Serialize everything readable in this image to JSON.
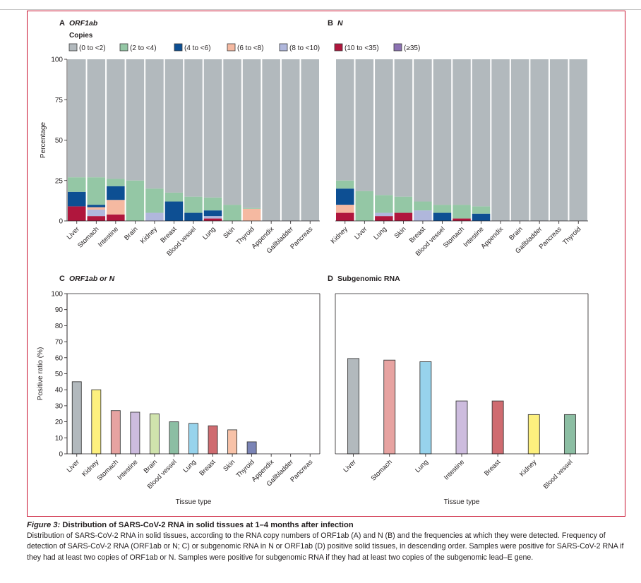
{
  "colors": {
    "frame": "#c8102e",
    "copies": [
      "#b2b9bd",
      "#94c7a5",
      "#0d4f93",
      "#f5b9a1",
      "#b0b7dc",
      "#b0163d",
      "#8c72b3"
    ]
  },
  "legend": {
    "title": "Copies",
    "items": [
      "(0 to <2)",
      "(2 to <4)",
      "(4 to <6)",
      "(6 to <8)",
      "(8 to <10)",
      "(10 to <35)",
      "(≥35)"
    ]
  },
  "axes": {
    "percentage_label": "Percentage",
    "positive_ratio_label": "Positive ratio (%)",
    "tissue_type_label": "Tissue type"
  },
  "caption": {
    "fig_label": "Figure 3:",
    "title": "Distribution of SARS-CoV-2 RNA in solid tissues at 1–4 months after infection",
    "body": "Distribution of SARS-CoV-2 RNA in solid tissues, according to the RNA copy numbers of ORF1ab (A) and N (B) and the frequencies at which they were detected. Frequency of detection of SARS-CoV-2 RNA (ORF1ab or N; C) or subgenomic RNA in N or ORF1ab (D) positive solid tissues, in descending order. Samples were positive for SARS-CoV-2 RNA if they had at least two copies of ORF1ab or N. Samples were positive for subgenomic RNA if they had at least two copies of the subgenomic lead–E gene."
  },
  "chart_data": [
    {
      "panel": "A",
      "title": "ORF1ab",
      "type": "bar",
      "stacked": true,
      "ylabel": "Percentage",
      "ylim": [
        0,
        100
      ],
      "yticks": [
        0,
        25,
        50,
        75,
        100
      ],
      "categories": [
        "Liver",
        "Stomach",
        "Intestine",
        "Brain",
        "Kidney",
        "Breast",
        "Blood vessel",
        "Lung",
        "Skin",
        "Thyroid",
        "Appendix",
        "Gallbladder",
        "Pancreas"
      ],
      "series": [
        {
          "name": "(10 to <35)",
          "values": [
            9,
            3,
            4,
            0,
            0,
            0,
            0,
            1.5,
            0,
            0,
            0,
            0,
            0
          ]
        },
        {
          "name": "(8 to <10)",
          "values": [
            0,
            4,
            0,
            0,
            5,
            0,
            0,
            1.5,
            0,
            0,
            0,
            0,
            0
          ]
        },
        {
          "name": "(6 to <8)",
          "values": [
            0,
            1.5,
            9,
            0,
            0,
            0,
            0,
            0,
            0,
            7.5,
            0,
            0,
            0
          ]
        },
        {
          "name": "(4 to <6)",
          "values": [
            9,
            1.5,
            8.5,
            0,
            0,
            12,
            5,
            3.5,
            0,
            0,
            0,
            0,
            0
          ]
        },
        {
          "name": "(2 to <4)",
          "values": [
            9,
            17,
            4.5,
            25,
            15,
            5.5,
            10,
            8,
            10,
            0.5,
            0,
            0,
            0
          ]
        },
        {
          "name": "(0 to <2)",
          "values": [
            73,
            73,
            74,
            75,
            80,
            82.5,
            85,
            85.5,
            90,
            92,
            100,
            100,
            100
          ]
        }
      ]
    },
    {
      "panel": "B",
      "title": "N",
      "type": "bar",
      "stacked": true,
      "ylim": [
        0,
        100
      ],
      "categories": [
        "Kidney",
        "Liver",
        "Lung",
        "Skin",
        "Breast",
        "Blood vessel",
        "Stomach",
        "Intestine",
        "Appendix",
        "Brain",
        "Gallbladder",
        "Pancreas",
        "Thyroid"
      ],
      "series": [
        {
          "name": "(10 to <35)",
          "values": [
            5,
            0,
            3,
            5,
            0,
            0,
            1.5,
            0,
            0,
            0,
            0,
            0,
            0
          ]
        },
        {
          "name": "(8 to <10)",
          "values": [
            0,
            0,
            2,
            0,
            6.5,
            0,
            0,
            0,
            0,
            0,
            0,
            0,
            0
          ]
        },
        {
          "name": "(6 to <8)",
          "values": [
            5,
            0,
            0,
            0,
            0,
            0,
            0,
            0,
            0,
            0,
            0,
            0,
            0
          ]
        },
        {
          "name": "(4 to <6)",
          "values": [
            10,
            0,
            0,
            0,
            0,
            5,
            0,
            4.5,
            0,
            0,
            0,
            0,
            0
          ]
        },
        {
          "name": "(2 to <4)",
          "values": [
            5,
            18.5,
            11,
            10,
            5.5,
            5,
            8.5,
            4.5,
            0,
            0,
            0,
            0,
            0
          ]
        },
        {
          "name": "(0 to <2)",
          "values": [
            75,
            81.5,
            84,
            85,
            88,
            90,
            90,
            91,
            100,
            100,
            100,
            100,
            100
          ]
        }
      ]
    },
    {
      "panel": "C",
      "title": "ORF1ab or N",
      "type": "bar",
      "ylabel": "Positive ratio (%)",
      "xlabel": "Tissue type",
      "ylim": [
        0,
        100
      ],
      "yticks": [
        0,
        10,
        20,
        30,
        40,
        50,
        60,
        70,
        80,
        90,
        100
      ],
      "categories": [
        "Liver",
        "Kidney",
        "Stomach",
        "Intestine",
        "Brain",
        "Blood vessel",
        "Lung",
        "Breast",
        "Skin",
        "Thyroid",
        "Appendix",
        "Gallbladder",
        "Pancreas"
      ],
      "values": [
        45,
        40,
        27,
        26,
        25,
        20,
        19,
        17.5,
        15,
        7.5,
        0,
        0,
        0
      ],
      "colors": [
        "#b2b9bd",
        "#fdf07e",
        "#e7a3a1",
        "#cdbcde",
        "#d0e3ad",
        "#8cbea3",
        "#97d3ec",
        "#cf6b70",
        "#f8c2a8",
        "#7b84b6",
        "#cccccc",
        "#cccccc",
        "#cccccc"
      ]
    },
    {
      "panel": "D",
      "title": "Subgenomic RNA",
      "type": "bar",
      "xlabel": "Tissue type",
      "ylim": [
        0,
        100
      ],
      "categories": [
        "Liver",
        "Stomach",
        "Lung",
        "Intestine",
        "Breast",
        "Kidney",
        "Blood vessel"
      ],
      "values": [
        59.5,
        58.5,
        57.5,
        33,
        33,
        24.5,
        24.5
      ],
      "colors": [
        "#b2b9bd",
        "#e7a3a1",
        "#97d3ec",
        "#cdbcde",
        "#cf6b70",
        "#fdf07e",
        "#8cbea3"
      ]
    }
  ]
}
